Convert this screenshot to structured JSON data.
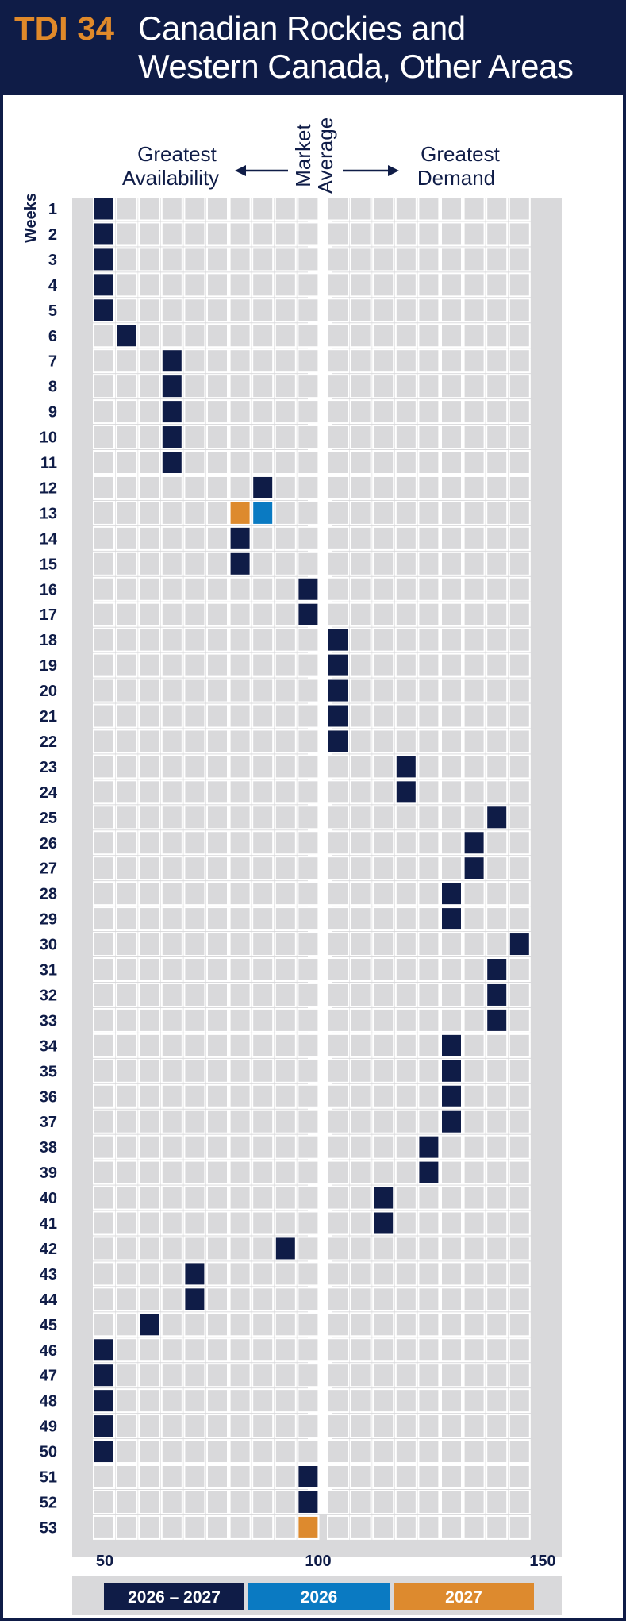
{
  "header": {
    "code": "TDI 34",
    "title_line1": "Canadian Rockies and",
    "title_line2": "Western Canada, Other Areas"
  },
  "colors": {
    "header_bg": "#0f1c47",
    "code_text": "#e0892a",
    "cell_empty": "#d9d9db",
    "chart_bg": "#d9d9db",
    "navy": "#0f1c47",
    "blue": "#0a7ac2",
    "orange": "#dd8a2e"
  },
  "chart_data": {
    "type": "heatmap",
    "direction_left": [
      "Greatest",
      "Availability"
    ],
    "direction_center": [
      "Market",
      "Average"
    ],
    "direction_right": [
      "Greatest",
      "Demand"
    ],
    "y_axis_label": "Weeks",
    "x_ticks": [
      50,
      100,
      150
    ],
    "xlim": [
      50,
      150
    ],
    "columns": [
      50,
      55,
      60,
      65,
      70,
      75,
      80,
      85,
      90,
      95,
      105,
      110,
      115,
      120,
      125,
      130,
      135,
      140,
      145
    ],
    "weeks": [
      1,
      2,
      3,
      4,
      5,
      6,
      7,
      8,
      9,
      10,
      11,
      12,
      13,
      14,
      15,
      16,
      17,
      18,
      19,
      20,
      21,
      22,
      23,
      24,
      25,
      26,
      27,
      28,
      29,
      30,
      31,
      32,
      33,
      34,
      35,
      36,
      37,
      38,
      39,
      40,
      41,
      42,
      43,
      44,
      45,
      46,
      47,
      48,
      49,
      50,
      51,
      52,
      53
    ],
    "series": [
      {
        "name": "2026 – 2027",
        "color": "#0f1c47",
        "values": [
          50,
          50,
          50,
          50,
          50,
          55,
          65,
          65,
          65,
          65,
          65,
          85,
          null,
          80,
          80,
          95,
          95,
          105,
          105,
          105,
          105,
          105,
          120,
          120,
          140,
          135,
          135,
          130,
          130,
          145,
          140,
          140,
          140,
          130,
          130,
          130,
          130,
          125,
          125,
          115,
          115,
          90,
          70,
          70,
          60,
          50,
          50,
          50,
          50,
          50,
          95,
          95,
          null
        ]
      },
      {
        "name": "2026",
        "color": "#0a7ac2",
        "values": [
          null,
          null,
          null,
          null,
          null,
          null,
          null,
          null,
          null,
          null,
          null,
          null,
          85,
          null,
          null,
          null,
          null,
          null,
          null,
          null,
          null,
          null,
          null,
          null,
          null,
          null,
          null,
          null,
          null,
          null,
          null,
          null,
          null,
          null,
          null,
          null,
          null,
          null,
          null,
          null,
          null,
          null,
          null,
          null,
          null,
          null,
          null,
          null,
          null,
          null,
          null,
          null,
          null
        ]
      },
      {
        "name": "2027",
        "color": "#dd8a2e",
        "values": [
          null,
          null,
          null,
          null,
          null,
          null,
          null,
          null,
          null,
          null,
          null,
          null,
          80,
          null,
          null,
          null,
          null,
          null,
          null,
          null,
          null,
          null,
          null,
          null,
          null,
          null,
          null,
          null,
          null,
          null,
          null,
          null,
          null,
          null,
          null,
          null,
          null,
          null,
          null,
          null,
          null,
          null,
          null,
          null,
          null,
          null,
          null,
          null,
          null,
          null,
          null,
          null,
          95
        ]
      }
    ]
  }
}
